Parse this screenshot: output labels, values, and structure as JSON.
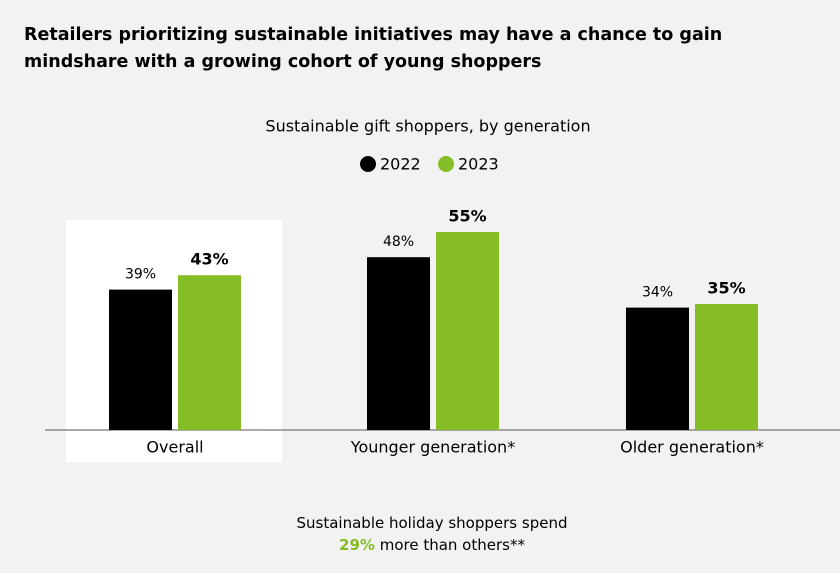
{
  "chart_data": {
    "type": "bar",
    "title": "Retailers prioritizing sustainable initiatives may have a chance to gain mindshare with a growing cohort of young shoppers",
    "subtitle": "Sustainable gift shoppers, by generation",
    "categories": [
      "Overall",
      "Younger generation*",
      "Older generation*"
    ],
    "series": [
      {
        "name": "2022",
        "color": "#000000",
        "values": [
          39,
          48,
          34
        ],
        "value_labels": [
          "39%",
          "48%",
          "34%"
        ]
      },
      {
        "name": "2023",
        "color": "#86bc25",
        "values": [
          43,
          55,
          35
        ],
        "value_labels": [
          "43%",
          "55%",
          "35%"
        ]
      }
    ],
    "footnote": {
      "text": "Sustainable holiday shoppers spend",
      "highlight": "29%",
      "text_end": "more than others**"
    }
  }
}
